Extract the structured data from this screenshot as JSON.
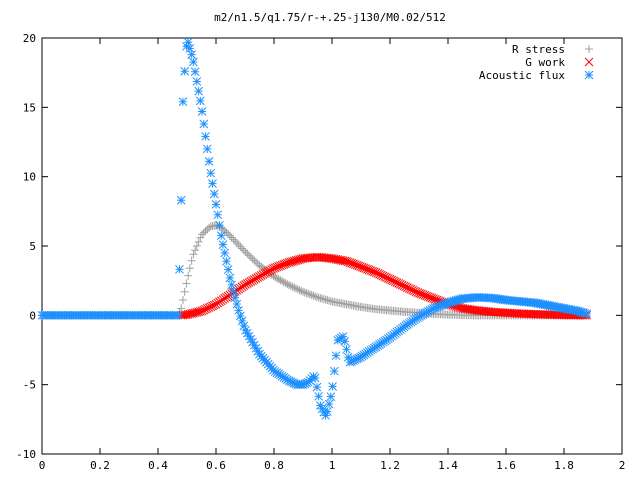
{
  "chart_data": {
    "type": "scatter",
    "title": "m2/n1.5/q1.75/r-+.25-j130/M0.02/512",
    "xlabel": "",
    "ylabel": "",
    "xlim": [
      0,
      2
    ],
    "ylim": [
      -10,
      20
    ],
    "xticks": [
      0,
      0.2,
      0.4,
      0.6,
      0.8,
      1,
      1.2,
      1.4,
      1.6,
      1.8,
      2
    ],
    "xtick_labels": [
      "0",
      "0.2",
      "0.4",
      "0.6",
      "0.8",
      "1",
      "1.2",
      "1.4",
      "1.6",
      "1.8",
      "2"
    ],
    "yticks": [
      -10,
      -5,
      0,
      5,
      10,
      15,
      20
    ],
    "ytick_labels": [
      "-10",
      "-5",
      "0",
      "5",
      "10",
      "15",
      "20"
    ],
    "grid": false,
    "legend_position": "top-right",
    "series": [
      {
        "name": "R stress",
        "marker": "+",
        "color": "#a0a0a0",
        "x": [
          0,
          0.1,
          0.2,
          0.3,
          0.4,
          0.47,
          0.48,
          0.5,
          0.52,
          0.55,
          0.58,
          0.6,
          0.62,
          0.65,
          0.7,
          0.75,
          0.8,
          0.85,
          0.9,
          0.95,
          1.0,
          1.05,
          1.1,
          1.15,
          1.2,
          1.25,
          1.3,
          1.35,
          1.4,
          1.45,
          1.5,
          1.55,
          1.6,
          1.65,
          1.7,
          1.75,
          1.8,
          1.85,
          1.88
        ],
        "y": [
          0,
          0,
          0,
          0,
          0,
          0,
          0.5,
          2.5,
          4.3,
          5.8,
          6.4,
          6.5,
          6.3,
          5.7,
          4.6,
          3.6,
          2.8,
          2.2,
          1.7,
          1.3,
          1.0,
          0.8,
          0.6,
          0.45,
          0.35,
          0.25,
          0.18,
          0.1,
          0.05,
          0.02,
          0,
          0,
          0,
          0,
          0,
          0,
          0,
          0,
          0
        ]
      },
      {
        "name": "G work",
        "marker": "x",
        "color": "#ff0000",
        "x": [
          0.48,
          0.5,
          0.55,
          0.6,
          0.65,
          0.7,
          0.75,
          0.8,
          0.85,
          0.9,
          0.95,
          1.0,
          1.05,
          1.1,
          1.15,
          1.2,
          1.25,
          1.3,
          1.35,
          1.4,
          1.45,
          1.5,
          1.55,
          1.6,
          1.65,
          1.7,
          1.75,
          1.8,
          1.85,
          1.88
        ],
        "y": [
          0,
          0.05,
          0.3,
          0.8,
          1.5,
          2.2,
          2.8,
          3.4,
          3.8,
          4.1,
          4.2,
          4.1,
          3.9,
          3.5,
          3.1,
          2.6,
          2.1,
          1.6,
          1.2,
          0.8,
          0.5,
          0.35,
          0.25,
          0.18,
          0.12,
          0.08,
          0.05,
          0.02,
          0.01,
          0
        ]
      },
      {
        "name": "Acoustic flux",
        "marker": "*",
        "color": "#1e90ff",
        "x": [
          0,
          0.1,
          0.2,
          0.3,
          0.4,
          0.47,
          0.48,
          0.485,
          0.49,
          0.5,
          0.52,
          0.55,
          0.58,
          0.6,
          0.62,
          0.65,
          0.68,
          0.7,
          0.75,
          0.8,
          0.85,
          0.88,
          0.9,
          0.92,
          0.94,
          0.96,
          0.98,
          1.0,
          1.02,
          1.04,
          1.06,
          1.1,
          1.15,
          1.2,
          1.25,
          1.3,
          1.35,
          1.4,
          1.45,
          1.5,
          1.55,
          1.6,
          1.65,
          1.7,
          1.75,
          1.8,
          1.85,
          1.88
        ],
        "y": [
          0,
          0,
          0,
          0,
          0,
          0,
          8.3,
          15.0,
          17.0,
          20.0,
          18.5,
          15.0,
          10.5,
          8.0,
          5.5,
          2.5,
          0.2,
          -1.0,
          -2.8,
          -4.0,
          -4.7,
          -5.0,
          -5.0,
          -4.8,
          -4.3,
          -6.5,
          -7.3,
          -5.5,
          -1.8,
          -1.5,
          -3.4,
          -3.0,
          -2.3,
          -1.6,
          -0.8,
          -0.1,
          0.5,
          0.9,
          1.2,
          1.3,
          1.25,
          1.1,
          1.0,
          0.9,
          0.7,
          0.5,
          0.3,
          0.1
        ]
      }
    ]
  }
}
